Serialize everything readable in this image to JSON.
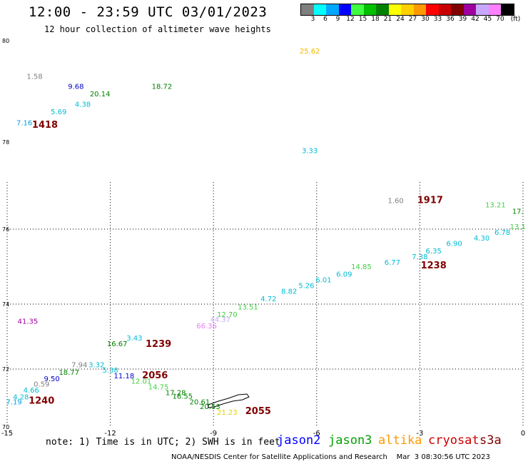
{
  "header": {
    "title": "12:00 - 23:59 UTC 03/01/2023",
    "subtitle": "12 hour collection of altimeter wave heights"
  },
  "legend": {
    "colors": [
      "#7f7f7f",
      "#00ffff",
      "#00a8ff",
      "#0000ff",
      "#40ff40",
      "#00c000",
      "#008000",
      "#ffff00",
      "#ffd000",
      "#ff9900",
      "#ff0000",
      "#c80000",
      "#800000",
      "#a000a0",
      "#c8a8ff",
      "#ff80ff",
      "#000000"
    ],
    "labels": [
      "3",
      "6",
      "9",
      "12",
      "15",
      "18",
      "21",
      "24",
      "27",
      "30",
      "33",
      "36",
      "39",
      "42",
      "45",
      "70",
      "(ft)"
    ]
  },
  "axes": {
    "x_ticks": [
      "-15",
      "-12",
      "-9",
      "-6",
      "-3",
      "0"
    ],
    "y_ticks": [
      "80",
      "78",
      "76",
      "74",
      "72",
      "70"
    ],
    "x_range": [
      -15,
      0
    ],
    "y_range": [
      70,
      80
    ]
  },
  "observations": [
    {
      "text": "1.58",
      "lon": -14.2,
      "lat": 79.25,
      "color": "#7f7f7f"
    },
    {
      "text": "9.68",
      "lon": -13.0,
      "lat": 79.05,
      "color": "#0000cc"
    },
    {
      "text": "20.14",
      "lon": -12.3,
      "lat": 78.9,
      "color": "#008000"
    },
    {
      "text": "18.72",
      "lon": -10.5,
      "lat": 79.05,
      "color": "#008000"
    },
    {
      "text": "4.38",
      "lon": -12.8,
      "lat": 78.7,
      "color": "#00bcd4"
    },
    {
      "text": "5.69",
      "lon": -13.5,
      "lat": 78.55,
      "color": "#00bcd4"
    },
    {
      "text": "7.16",
      "lon": -14.5,
      "lat": 78.33,
      "color": "#00a0e0"
    },
    {
      "text": "25.62",
      "lon": -6.2,
      "lat": 79.75,
      "color": "#f0b800"
    },
    {
      "text": "3.33",
      "lon": -6.2,
      "lat": 77.75,
      "color": "#00bcd4"
    },
    {
      "text": "1.60",
      "lon": -3.7,
      "lat": 76.6,
      "color": "#7f7f7f"
    },
    {
      "text": "13.21",
      "lon": -0.8,
      "lat": 76.5,
      "color": "#40d040"
    },
    {
      "text": "17.",
      "lon": -0.15,
      "lat": 76.35,
      "color": "#008000"
    },
    {
      "text": "13.1",
      "lon": -0.15,
      "lat": 76.0,
      "color": "#40d040"
    },
    {
      "text": "6.78",
      "lon": -0.6,
      "lat": 75.85,
      "color": "#00bcd4"
    },
    {
      "text": "4.30",
      "lon": -1.2,
      "lat": 75.7,
      "color": "#00bcd4"
    },
    {
      "text": "6.90",
      "lon": -2.0,
      "lat": 75.55,
      "color": "#00bcd4"
    },
    {
      "text": "6.35",
      "lon": -2.6,
      "lat": 75.35,
      "color": "#00bcd4"
    },
    {
      "text": "7.38",
      "lon": -3.0,
      "lat": 75.2,
      "color": "#00bcd4"
    },
    {
      "text": "6.77",
      "lon": -3.8,
      "lat": 75.05,
      "color": "#00bcd4"
    },
    {
      "text": "14.85",
      "lon": -4.7,
      "lat": 74.93,
      "color": "#40d040"
    },
    {
      "text": "6.09",
      "lon": -5.2,
      "lat": 74.73,
      "color": "#00bcd4"
    },
    {
      "text": "6.01",
      "lon": -5.8,
      "lat": 74.58,
      "color": "#00bcd4"
    },
    {
      "text": "5.26",
      "lon": -6.3,
      "lat": 74.43,
      "color": "#00bcd4"
    },
    {
      "text": "8.82",
      "lon": -6.8,
      "lat": 74.28,
      "color": "#00bcd4"
    },
    {
      "text": "4.72",
      "lon": -7.4,
      "lat": 74.08,
      "color": "#00bcd4"
    },
    {
      "text": "13.51",
      "lon": -8.0,
      "lat": 73.83,
      "color": "#40d040"
    },
    {
      "text": "12.70",
      "lon": -8.6,
      "lat": 73.6,
      "color": "#40d040"
    },
    {
      "text": "44.37",
      "lon": -8.8,
      "lat": 73.45,
      "color": "#c8a8ff"
    },
    {
      "text": "66.36",
      "lon": -9.2,
      "lat": 73.25,
      "color": "#e080f0"
    },
    {
      "text": "41.35",
      "lon": -14.4,
      "lat": 73.4,
      "color": "#a000a0"
    },
    {
      "text": "3.43",
      "lon": -11.3,
      "lat": 72.88,
      "color": "#00bcd4"
    },
    {
      "text": "16.67",
      "lon": -11.8,
      "lat": 72.7,
      "color": "#008000"
    },
    {
      "text": "7.94",
      "lon": -12.9,
      "lat": 72.06,
      "color": "#7f7f7f"
    },
    {
      "text": "3.32",
      "lon": -12.4,
      "lat": 72.06,
      "color": "#00bcd4"
    },
    {
      "text": "5.38",
      "lon": -12.0,
      "lat": 71.88,
      "color": "#00bcd4"
    },
    {
      "text": "11.18",
      "lon": -11.6,
      "lat": 71.68,
      "color": "#0000cc"
    },
    {
      "text": "12.01",
      "lon": -11.1,
      "lat": 71.5,
      "color": "#40d040"
    },
    {
      "text": "14.75",
      "lon": -10.6,
      "lat": 71.3,
      "color": "#40d040"
    },
    {
      "text": "17.28",
      "lon": -10.1,
      "lat": 71.1,
      "color": "#008000"
    },
    {
      "text": "16.55",
      "lon": -9.9,
      "lat": 70.98,
      "color": "#008000"
    },
    {
      "text": "20.61",
      "lon": -9.4,
      "lat": 70.78,
      "color": "#008000"
    },
    {
      "text": "20.53",
      "lon": -9.1,
      "lat": 70.62,
      "color": "#008000"
    },
    {
      "text": "21.23",
      "lon": -8.6,
      "lat": 70.42,
      "color": "#e0d000"
    },
    {
      "text": "18.77",
      "lon": -13.2,
      "lat": 71.8,
      "color": "#008000"
    },
    {
      "text": "9.50",
      "lon": -13.7,
      "lat": 71.58,
      "color": "#0000cc"
    },
    {
      "text": "0.59",
      "lon": -14.0,
      "lat": 71.4,
      "color": "#7f7f7f"
    },
    {
      "text": "4.66",
      "lon": -14.3,
      "lat": 71.18,
      "color": "#00bcd4"
    },
    {
      "text": "4.28",
      "lon": -14.6,
      "lat": 70.95,
      "color": "#00bcd4"
    },
    {
      "text": "7.19",
      "lon": -14.8,
      "lat": 70.78,
      "color": "#00a0e0"
    }
  ],
  "pass_times": [
    {
      "text": "1418",
      "lon": -13.9,
      "lat": 78.28
    },
    {
      "text": "1917",
      "lon": -2.7,
      "lat": 76.6
    },
    {
      "text": "1238",
      "lon": -2.6,
      "lat": 74.95
    },
    {
      "text": "1239",
      "lon": -10.6,
      "lat": 72.68
    },
    {
      "text": "2056",
      "lon": -10.7,
      "lat": 71.68
    },
    {
      "text": "2055",
      "lon": -7.7,
      "lat": 70.45
    },
    {
      "text": "1240",
      "lon": -14.0,
      "lat": 70.8
    }
  ],
  "pass_time_color": "#800000",
  "note": "note: 1) Time is in UTC; 2) SWH is in feet",
  "satellites": [
    {
      "name": "jason2",
      "color": "#0000ff"
    },
    {
      "name": "jason3",
      "color": "#00a000"
    },
    {
      "name": "altika",
      "color": "#ff9900"
    },
    {
      "name": "cryosat",
      "color": "#cc0000"
    },
    {
      "name": "s3a",
      "color": "#800000"
    }
  ],
  "footer": "NOAA/NESDIS Center for Satellite Applications and Research    Mar  3 08:30:56 UTC 2023"
}
